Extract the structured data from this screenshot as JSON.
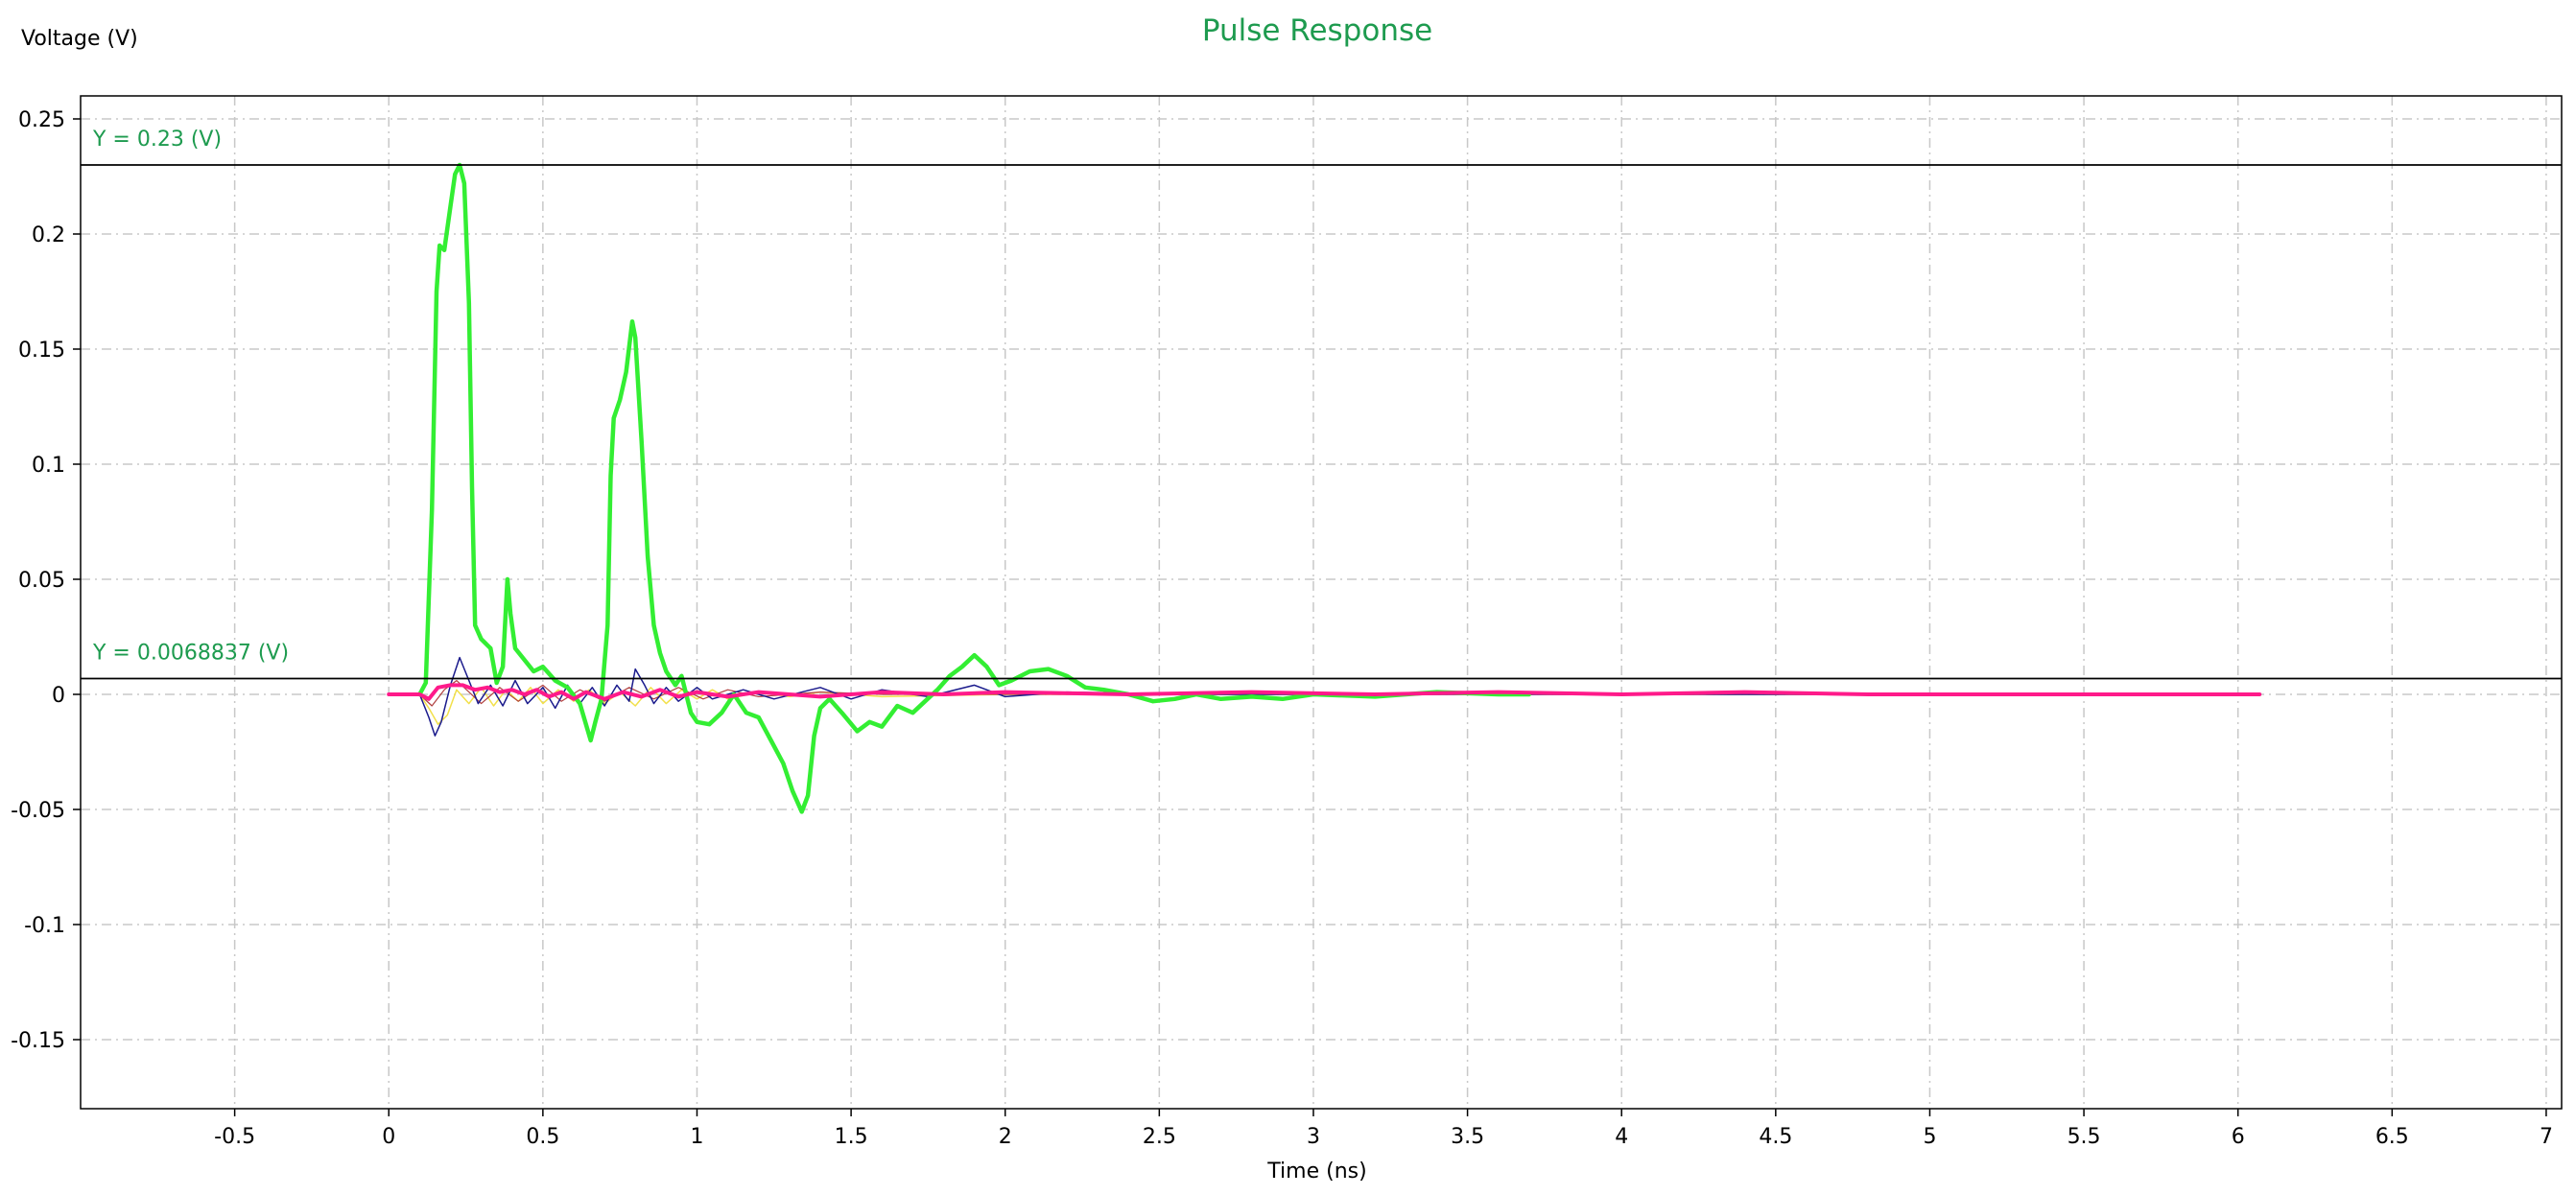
{
  "chart_data": {
    "type": "line",
    "title": "Pulse Response",
    "xlabel": "Time (ns)",
    "ylabel": "Voltage (V)",
    "xlim": [
      -1.0,
      7.05
    ],
    "ylim": [
      -0.18,
      0.26
    ],
    "x_ticks": [
      -0.5,
      0,
      0.5,
      1,
      1.5,
      2,
      2.5,
      3,
      3.5,
      4,
      4.5,
      5,
      5.5,
      6,
      6.5,
      7
    ],
    "x_tick_labels": [
      "-0.5",
      "0",
      "0.5",
      "1",
      "1.5",
      "2",
      "2.5",
      "3",
      "3.5",
      "4",
      "4.5",
      "5",
      "5.5",
      "6",
      "6.5",
      "7"
    ],
    "y_ticks": [
      -0.15,
      -0.1,
      -0.05,
      0,
      0.05,
      0.1,
      0.15,
      0.2,
      0.25
    ],
    "y_tick_labels": [
      "-0.15",
      "-0.1",
      "-0.05",
      "0",
      "0.05",
      "0.1",
      "0.15",
      "0.2",
      "0.25"
    ],
    "grid": true,
    "markers": [
      {
        "y": 0.23,
        "label": "Y = 0.23 (V)"
      },
      {
        "y": 0.0068837,
        "label": "Y = 0.0068837 (V)"
      }
    ],
    "series": [
      {
        "color": "#f2e04a",
        "width": 1.5,
        "points": [
          [
            0,
            0
          ],
          [
            0.1,
            0
          ],
          [
            0.13,
            -0.006
          ],
          [
            0.16,
            -0.013
          ],
          [
            0.19,
            -0.009
          ],
          [
            0.22,
            0.002
          ],
          [
            0.26,
            -0.004
          ],
          [
            0.3,
            0.003
          ],
          [
            0.34,
            -0.005
          ],
          [
            0.38,
            0.002
          ],
          [
            0.42,
            -0.003
          ],
          [
            0.46,
            0.003
          ],
          [
            0.5,
            -0.004
          ],
          [
            0.55,
            0.002
          ],
          [
            0.6,
            -0.003
          ],
          [
            0.65,
            0.002
          ],
          [
            0.7,
            -0.004
          ],
          [
            0.75,
            0.001
          ],
          [
            0.8,
            -0.005
          ],
          [
            0.85,
            0.003
          ],
          [
            0.9,
            -0.004
          ],
          [
            0.95,
            0.002
          ],
          [
            1.0,
            -0.002
          ],
          [
            1.05,
            0.002
          ],
          [
            1.1,
            -0.002
          ],
          [
            1.2,
            0.001
          ],
          [
            1.3,
            -0.001
          ],
          [
            1.4,
            0.001
          ],
          [
            1.6,
            -0.001
          ],
          [
            2.0,
            0
          ],
          [
            3.0,
            0
          ],
          [
            4.0,
            0
          ],
          [
            5.0,
            0
          ]
        ]
      },
      {
        "color": "#b04040",
        "width": 1.2,
        "points": [
          [
            0,
            0
          ],
          [
            0.1,
            0
          ],
          [
            0.14,
            -0.005
          ],
          [
            0.18,
            0.002
          ],
          [
            0.22,
            0.006
          ],
          [
            0.26,
            0.001
          ],
          [
            0.3,
            -0.004
          ],
          [
            0.36,
            0.003
          ],
          [
            0.42,
            -0.003
          ],
          [
            0.5,
            0.004
          ],
          [
            0.56,
            -0.003
          ],
          [
            0.62,
            0.002
          ],
          [
            0.7,
            -0.003
          ],
          [
            0.78,
            0.003
          ],
          [
            0.86,
            -0.002
          ],
          [
            0.94,
            0.003
          ],
          [
            1.02,
            -0.002
          ],
          [
            1.1,
            0.002
          ],
          [
            1.2,
            -0.001
          ],
          [
            1.4,
            0.001
          ],
          [
            1.6,
            0
          ],
          [
            2.0,
            0
          ],
          [
            3.0,
            0
          ],
          [
            4.0,
            0
          ],
          [
            5.0,
            0
          ]
        ]
      },
      {
        "color": "#1a1a8c",
        "width": 1.5,
        "points": [
          [
            0,
            0
          ],
          [
            0.1,
            0
          ],
          [
            0.13,
            -0.01
          ],
          [
            0.15,
            -0.018
          ],
          [
            0.17,
            -0.012
          ],
          [
            0.2,
            0.004
          ],
          [
            0.23,
            0.016
          ],
          [
            0.26,
            0.006
          ],
          [
            0.29,
            -0.004
          ],
          [
            0.33,
            0.004
          ],
          [
            0.37,
            -0.005
          ],
          [
            0.41,
            0.006
          ],
          [
            0.45,
            -0.004
          ],
          [
            0.5,
            0.003
          ],
          [
            0.54,
            -0.006
          ],
          [
            0.58,
            0.004
          ],
          [
            0.62,
            -0.004
          ],
          [
            0.66,
            0.003
          ],
          [
            0.7,
            -0.005
          ],
          [
            0.74,
            0.004
          ],
          [
            0.78,
            -0.003
          ],
          [
            0.8,
            0.011
          ],
          [
            0.83,
            0.004
          ],
          [
            0.86,
            -0.004
          ],
          [
            0.9,
            0.003
          ],
          [
            0.94,
            -0.003
          ],
          [
            1.0,
            0.003
          ],
          [
            1.05,
            -0.002
          ],
          [
            1.15,
            0.002
          ],
          [
            1.25,
            -0.002
          ],
          [
            1.4,
            0.003
          ],
          [
            1.5,
            -0.002
          ],
          [
            1.6,
            0.002
          ],
          [
            1.75,
            -0.001
          ],
          [
            1.9,
            0.004
          ],
          [
            2.0,
            -0.001
          ],
          [
            2.2,
            0.001
          ],
          [
            2.6,
            0
          ],
          [
            3.0,
            0
          ],
          [
            4.0,
            0
          ],
          [
            5.0,
            0
          ]
        ]
      },
      {
        "color": "#33ee33",
        "width": 4.5,
        "points": [
          [
            0.1,
            0
          ],
          [
            0.12,
            0.005
          ],
          [
            0.14,
            0.08
          ],
          [
            0.155,
            0.175
          ],
          [
            0.165,
            0.195
          ],
          [
            0.18,
            0.193
          ],
          [
            0.2,
            0.212
          ],
          [
            0.215,
            0.226
          ],
          [
            0.23,
            0.23
          ],
          [
            0.245,
            0.222
          ],
          [
            0.26,
            0.17
          ],
          [
            0.27,
            0.09
          ],
          [
            0.28,
            0.03
          ],
          [
            0.3,
            0.024
          ],
          [
            0.33,
            0.02
          ],
          [
            0.35,
            0.005
          ],
          [
            0.37,
            0.012
          ],
          [
            0.385,
            0.05
          ],
          [
            0.395,
            0.035
          ],
          [
            0.41,
            0.02
          ],
          [
            0.44,
            0.015
          ],
          [
            0.47,
            0.01
          ],
          [
            0.5,
            0.012
          ],
          [
            0.54,
            0.006
          ],
          [
            0.58,
            0.003
          ],
          [
            0.62,
            -0.004
          ],
          [
            0.655,
            -0.02
          ],
          [
            0.67,
            -0.012
          ],
          [
            0.69,
            -0.002
          ],
          [
            0.71,
            0.03
          ],
          [
            0.72,
            0.095
          ],
          [
            0.73,
            0.12
          ],
          [
            0.75,
            0.128
          ],
          [
            0.77,
            0.14
          ],
          [
            0.79,
            0.162
          ],
          [
            0.8,
            0.155
          ],
          [
            0.82,
            0.11
          ],
          [
            0.84,
            0.06
          ],
          [
            0.86,
            0.03
          ],
          [
            0.88,
            0.018
          ],
          [
            0.9,
            0.01
          ],
          [
            0.93,
            0.004
          ],
          [
            0.95,
            0.008
          ],
          [
            0.98,
            -0.008
          ],
          [
            1.0,
            -0.012
          ],
          [
            1.04,
            -0.013
          ],
          [
            1.08,
            -0.008
          ],
          [
            1.12,
            0
          ],
          [
            1.16,
            -0.008
          ],
          [
            1.2,
            -0.01
          ],
          [
            1.24,
            -0.02
          ],
          [
            1.28,
            -0.03
          ],
          [
            1.31,
            -0.042
          ],
          [
            1.34,
            -0.051
          ],
          [
            1.36,
            -0.044
          ],
          [
            1.38,
            -0.018
          ],
          [
            1.4,
            -0.006
          ],
          [
            1.43,
            -0.002
          ],
          [
            1.47,
            -0.008
          ],
          [
            1.52,
            -0.016
          ],
          [
            1.56,
            -0.012
          ],
          [
            1.6,
            -0.014
          ],
          [
            1.65,
            -0.005
          ],
          [
            1.7,
            -0.008
          ],
          [
            1.74,
            -0.003
          ],
          [
            1.78,
            0.002
          ],
          [
            1.82,
            0.008
          ],
          [
            1.86,
            0.012
          ],
          [
            1.9,
            0.017
          ],
          [
            1.94,
            0.012
          ],
          [
            1.98,
            0.004
          ],
          [
            2.02,
            0.006
          ],
          [
            2.08,
            0.01
          ],
          [
            2.14,
            0.011
          ],
          [
            2.2,
            0.008
          ],
          [
            2.26,
            0.003
          ],
          [
            2.32,
            0.002
          ],
          [
            2.4,
            0
          ],
          [
            2.48,
            -0.003
          ],
          [
            2.55,
            -0.002
          ],
          [
            2.62,
            0
          ],
          [
            2.7,
            -0.002
          ],
          [
            2.8,
            -0.001
          ],
          [
            2.9,
            -0.002
          ],
          [
            3.0,
            0
          ],
          [
            3.2,
            -0.001
          ],
          [
            3.4,
            0.001
          ],
          [
            3.6,
            0
          ],
          [
            3.7,
            0
          ]
        ]
      },
      {
        "color": "#ff1a8a",
        "width": 4,
        "points": [
          [
            0,
            0
          ],
          [
            0.1,
            0
          ],
          [
            0.13,
            -0.002
          ],
          [
            0.16,
            0.003
          ],
          [
            0.2,
            0.004
          ],
          [
            0.24,
            0.004
          ],
          [
            0.28,
            0.002
          ],
          [
            0.32,
            0.003
          ],
          [
            0.36,
            0.001
          ],
          [
            0.4,
            0.002
          ],
          [
            0.44,
            0
          ],
          [
            0.48,
            0.002
          ],
          [
            0.52,
            -0.001
          ],
          [
            0.56,
            0.001
          ],
          [
            0.6,
            -0.002
          ],
          [
            0.64,
            0.001
          ],
          [
            0.7,
            -0.002
          ],
          [
            0.76,
            0.001
          ],
          [
            0.82,
            -0.001
          ],
          [
            0.88,
            0.002
          ],
          [
            0.94,
            -0.001
          ],
          [
            1.0,
            0.001
          ],
          [
            1.1,
            -0.001
          ],
          [
            1.2,
            0.001
          ],
          [
            1.4,
            -0.001
          ],
          [
            1.6,
            0.001
          ],
          [
            1.8,
            0
          ],
          [
            2.0,
            0.001
          ],
          [
            2.4,
            0
          ],
          [
            2.8,
            0.001
          ],
          [
            3.2,
            0
          ],
          [
            3.6,
            0.001
          ],
          [
            4.0,
            0
          ],
          [
            4.4,
            0.001
          ],
          [
            4.8,
            0
          ],
          [
            5.2,
            0
          ],
          [
            5.6,
            0
          ],
          [
            6.07,
            0
          ]
        ]
      }
    ]
  }
}
